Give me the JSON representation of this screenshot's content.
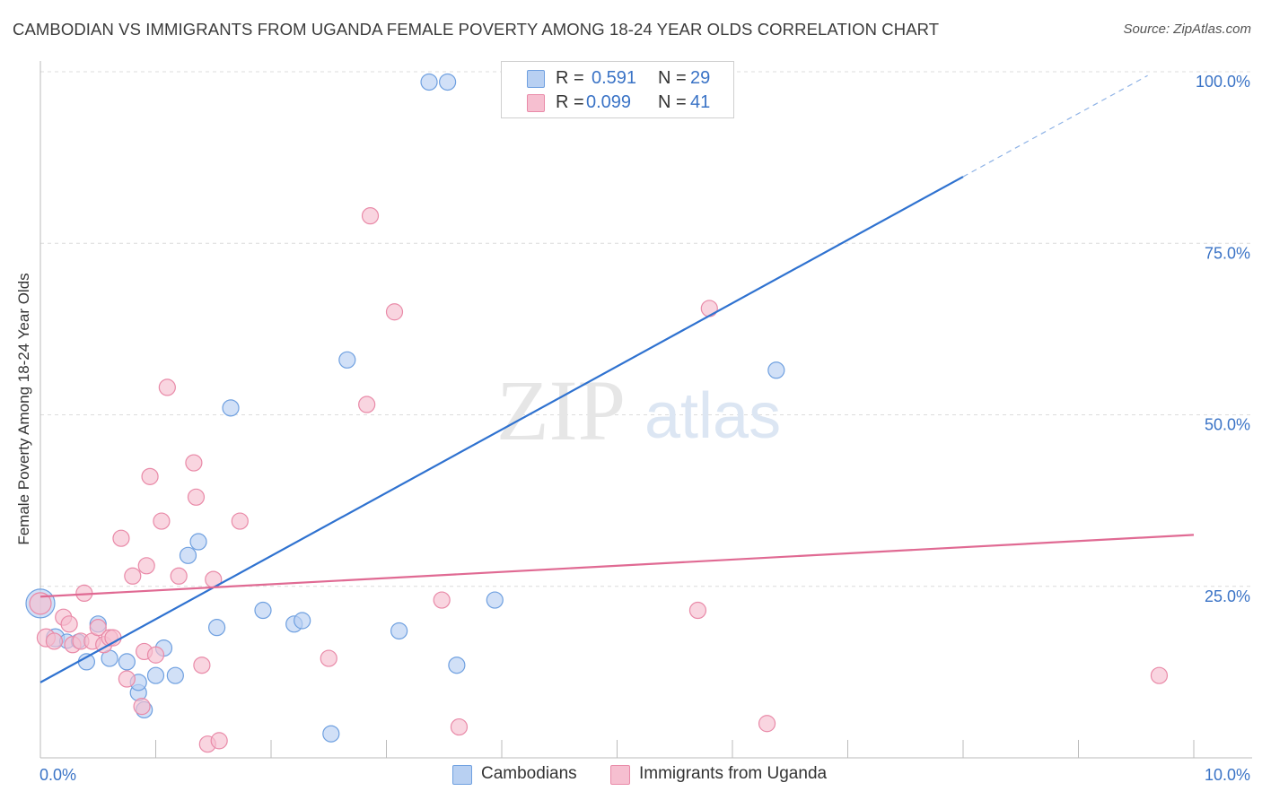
{
  "chart_data": {
    "type": "scatter",
    "title": "CAMBODIAN VS IMMIGRANTS FROM UGANDA FEMALE POVERTY AMONG 18-24 YEAR OLDS CORRELATION CHART",
    "source": "Source: ZipAtlas.com",
    "xlabel": "",
    "ylabel": "Female Poverty Among 18-24 Year Olds",
    "xlim": [
      0,
      10
    ],
    "ylim": [
      0,
      100
    ],
    "x_tick_labels": [
      "0.0%",
      "10.0%"
    ],
    "y_ticks": [
      25,
      50,
      75,
      100
    ],
    "y_tick_labels": [
      "25.0%",
      "50.0%",
      "75.0%",
      "100.0%"
    ],
    "grid": true,
    "watermark": {
      "zip": "ZIP",
      "atlas": "atlas"
    },
    "series": [
      {
        "name": "Cambodians",
        "color": "#6fa0e0",
        "fill": "#b8d0f2",
        "R": "0.591",
        "N": "29",
        "trend": {
          "x0": 0,
          "y0": 11.0,
          "x1": 8.0,
          "y1": 84.7,
          "dash_x1": 9.6
        },
        "points": [
          [
            0.0,
            22.5,
            16
          ],
          [
            0.13,
            17.5,
            10
          ],
          [
            0.23,
            17.0,
            8
          ],
          [
            0.33,
            17.0,
            8
          ],
          [
            0.4,
            14.0,
            9
          ],
          [
            0.5,
            19.5,
            9
          ],
          [
            0.6,
            14.5,
            9
          ],
          [
            0.75,
            14.0,
            9
          ],
          [
            0.85,
            9.5,
            9
          ],
          [
            0.85,
            11.0,
            9
          ],
          [
            0.9,
            7.0,
            9
          ],
          [
            1.0,
            12.0,
            9
          ],
          [
            1.07,
            16.0,
            9
          ],
          [
            1.17,
            12.0,
            9
          ],
          [
            1.28,
            29.5,
            9
          ],
          [
            1.37,
            31.5,
            9
          ],
          [
            1.53,
            19.0,
            9
          ],
          [
            1.65,
            51.0,
            9
          ],
          [
            1.93,
            21.5,
            9
          ],
          [
            2.2,
            19.5,
            9
          ],
          [
            2.27,
            20.0,
            9
          ],
          [
            2.52,
            3.5,
            9
          ],
          [
            2.66,
            58.0,
            9
          ],
          [
            3.11,
            18.5,
            9
          ],
          [
            3.37,
            98.5,
            9
          ],
          [
            3.53,
            98.5,
            9
          ],
          [
            3.61,
            13.5,
            9
          ],
          [
            3.94,
            23.0,
            9
          ],
          [
            6.38,
            56.5,
            9
          ]
        ]
      },
      {
        "name": "Immigrants from Uganda",
        "color": "#e98aa8",
        "fill": "#f6bfd0",
        "R": "0.099",
        "N": "41",
        "trend": {
          "x0": 0,
          "y0": 23.5,
          "x1": 10.0,
          "y1": 32.5
        },
        "points": [
          [
            0.0,
            22.5,
            12
          ],
          [
            0.05,
            17.5,
            10
          ],
          [
            0.12,
            17.0,
            9
          ],
          [
            0.2,
            20.5,
            9
          ],
          [
            0.25,
            19.5,
            9
          ],
          [
            0.28,
            16.5,
            9
          ],
          [
            0.35,
            17.0,
            9
          ],
          [
            0.38,
            24.0,
            9
          ],
          [
            0.45,
            17.0,
            9
          ],
          [
            0.5,
            19.0,
            9
          ],
          [
            0.55,
            16.5,
            9
          ],
          [
            0.6,
            17.5,
            9
          ],
          [
            0.63,
            17.5,
            9
          ],
          [
            0.7,
            32.0,
            9
          ],
          [
            0.75,
            11.5,
            9
          ],
          [
            0.8,
            26.5,
            9
          ],
          [
            0.88,
            7.5,
            9
          ],
          [
            0.95,
            41.0,
            9
          ],
          [
            0.9,
            15.5,
            9
          ],
          [
            0.92,
            28.0,
            9
          ],
          [
            1.0,
            15.0,
            9
          ],
          [
            1.05,
            34.5,
            9
          ],
          [
            1.1,
            54.0,
            9
          ],
          [
            1.2,
            26.5,
            9
          ],
          [
            1.33,
            43.0,
            9
          ],
          [
            1.35,
            38.0,
            9
          ],
          [
            1.4,
            13.5,
            9
          ],
          [
            1.45,
            2.0,
            9
          ],
          [
            1.5,
            26.0,
            9
          ],
          [
            1.55,
            2.5,
            9
          ],
          [
            1.73,
            34.5,
            9
          ],
          [
            2.5,
            14.5,
            9
          ],
          [
            2.83,
            51.5,
            9
          ],
          [
            2.86,
            79.0,
            9
          ],
          [
            3.07,
            65.0,
            9
          ],
          [
            3.48,
            23.0,
            9
          ],
          [
            3.63,
            4.5,
            9
          ],
          [
            5.7,
            21.5,
            9
          ],
          [
            5.8,
            65.5,
            9
          ],
          [
            6.3,
            5.0,
            9
          ],
          [
            9.7,
            12.0,
            9
          ]
        ]
      }
    ]
  }
}
